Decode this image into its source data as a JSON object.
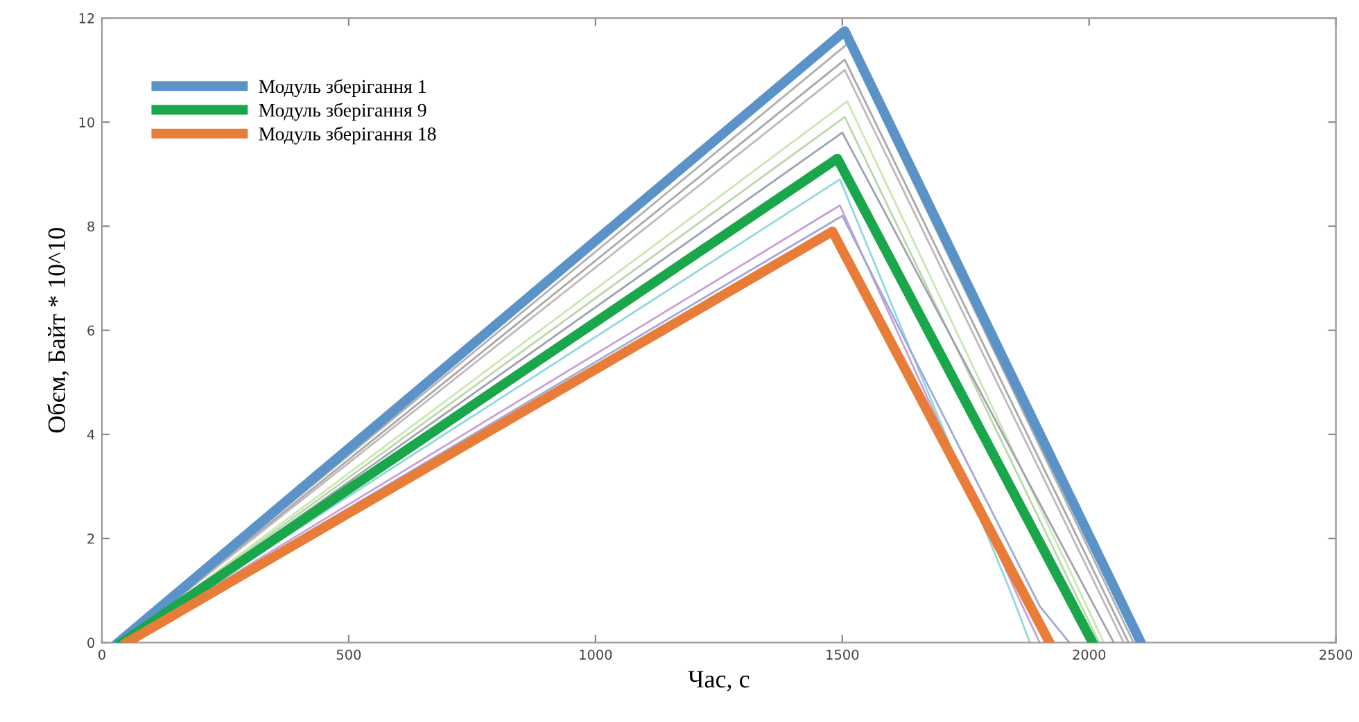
{
  "chart_data": {
    "type": "line",
    "xlabel": "Час, с",
    "ylabel": "Обєм, Байт * 10^10",
    "xlim": [
      0,
      2500
    ],
    "ylim": [
      0,
      12
    ],
    "xticks": [
      0,
      500,
      1000,
      1500,
      2000,
      2500
    ],
    "yticks": [
      0,
      2,
      4,
      6,
      8,
      10,
      12
    ],
    "grid": false,
    "legend": "top left",
    "marker": "none",
    "line_style": "solid",
    "series": [
      {
        "color": "#b0b0b0",
        "x": [
          40,
          1510,
          2090
        ],
        "values": [
          0,
          11.5,
          0
        ]
      },
      {
        "color": "#a8a8a8",
        "x": [
          40,
          1505,
          2080
        ],
        "values": [
          0,
          11.2,
          0
        ]
      },
      {
        "color": "#c0b8b8",
        "x": [
          40,
          1505,
          2070
        ],
        "values": [
          0,
          11.0,
          0
        ]
      },
      {
        "color": "#c8e8b0",
        "x": [
          40,
          1510,
          2030
        ],
        "values": [
          0,
          10.4,
          0
        ]
      },
      {
        "color": "#b8d8a8",
        "x": [
          40,
          1505,
          2020
        ],
        "values": [
          0,
          10.1,
          0
        ]
      },
      {
        "color": "#a0a0b0",
        "x": [
          40,
          1500,
          2050
        ],
        "values": [
          0,
          9.8,
          0
        ]
      },
      {
        "color": "#90d8e0",
        "x": [
          40,
          1495,
          1840,
          1880
        ],
        "values": [
          0,
          8.9,
          1.0,
          0
        ]
      },
      {
        "color": "#c8a0d8",
        "x": [
          40,
          1495,
          1860,
          1900
        ],
        "values": [
          0,
          8.4,
          0.8,
          0
        ]
      },
      {
        "color": "#a0a8d8",
        "x": [
          40,
          1500,
          1900,
          1960
        ],
        "values": [
          0,
          8.2,
          0.7,
          0
        ]
      },
      {
        "name": "Модуль зберігання 1",
        "color": "#5b93c9",
        "x": [
          33,
          1505,
          2105
        ],
        "values": [
          0,
          11.75,
          0
        ]
      },
      {
        "name": "Модуль зберігання 9",
        "color": "#1aa64a",
        "x": [
          40,
          1490,
          2007
        ],
        "values": [
          0,
          9.3,
          0
        ]
      },
      {
        "name": "Модуль зберігання 18",
        "color": "#e87d3a",
        "x": [
          50,
          1480,
          1920
        ],
        "values": [
          0,
          7.9,
          0
        ]
      }
    ]
  }
}
